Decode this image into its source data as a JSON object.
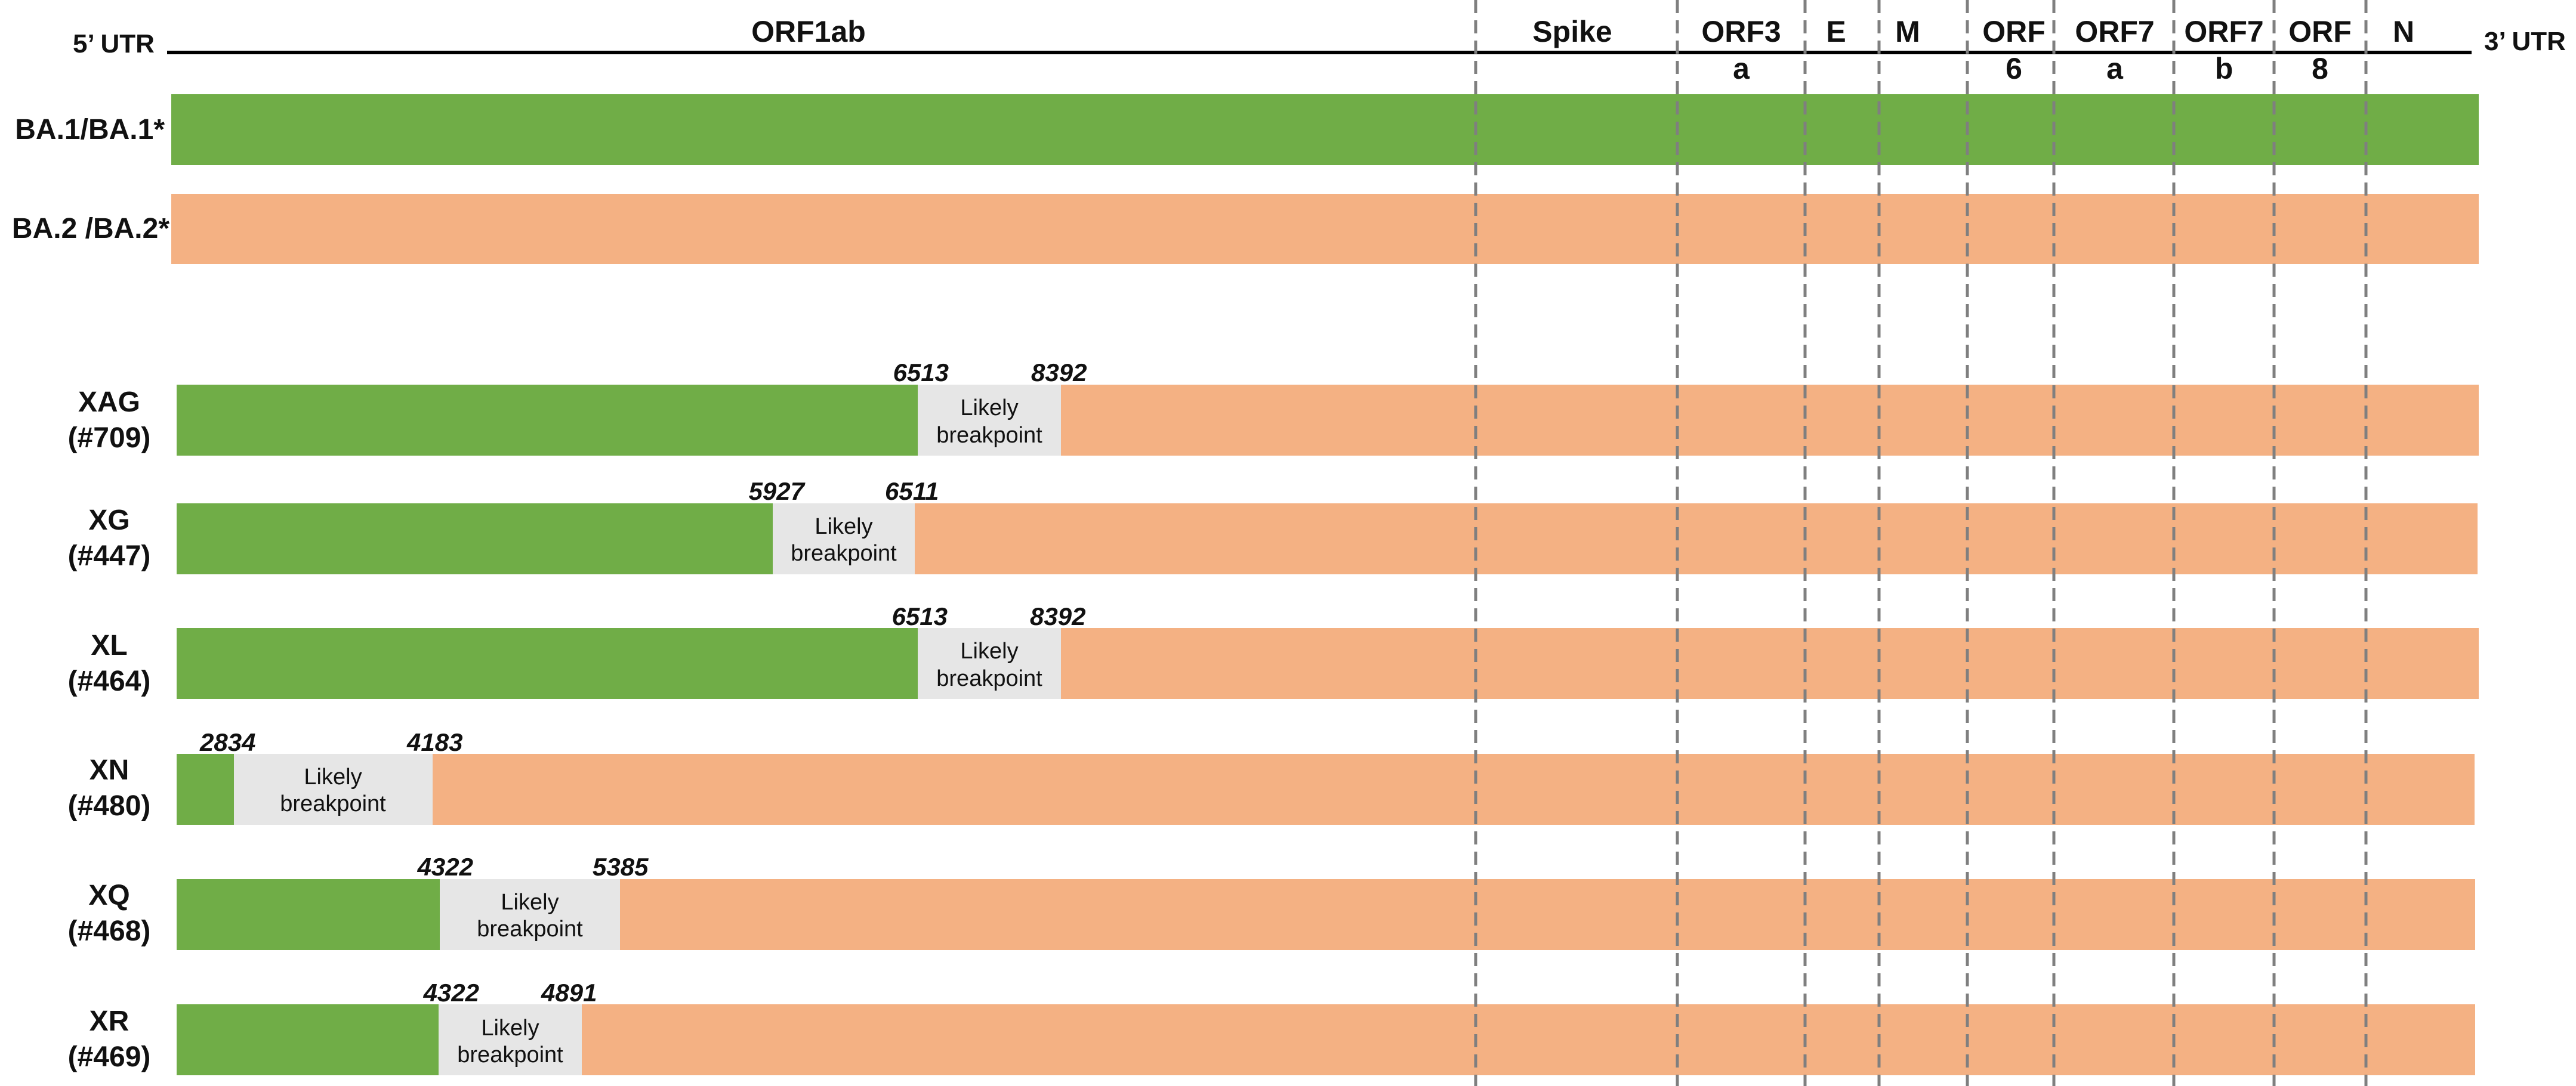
{
  "title": "",
  "utr": {
    "left": "5’ UTR",
    "right": "3’ UTR"
  },
  "colors": {
    "BA.1": "#70ad47",
    "BA.2": "#f4b183",
    "breakpoint": "#e6e6e6",
    "divider": "#7f7f7f"
  },
  "genome_regions": [
    {
      "label": "ORF1ab"
    },
    {
      "label": "Spike"
    },
    {
      "label": "ORF3",
      "label2": "a"
    },
    {
      "label": "E"
    },
    {
      "label": "M"
    },
    {
      "label": "ORF",
      "label2": "6"
    },
    {
      "label": "ORF7",
      "label2": "a"
    },
    {
      "label": "ORF7",
      "label2": "b"
    },
    {
      "label": "ORF",
      "label2": "8"
    },
    {
      "label": "N"
    }
  ],
  "parents": [
    {
      "label": "BA.1/BA.1*",
      "lineage": "BA.1"
    },
    {
      "label": "BA.2 /BA.2*",
      "lineage": "BA.2"
    }
  ],
  "breakpoint_label": [
    "Likely",
    "breakpoint"
  ],
  "recombinants": [
    {
      "name": "XAG",
      "id": "(#709)",
      "start": "6513",
      "end": "8392"
    },
    {
      "name": "XG",
      "id": "(#447)",
      "start": "5927",
      "end": "6511"
    },
    {
      "name": "XL",
      "id": "(#464)",
      "start": "6513",
      "end": "8392"
    },
    {
      "name": "XN",
      "id": "(#480)",
      "start": "2834",
      "end": "4183"
    },
    {
      "name": "XQ",
      "id": "(#468)",
      "start": "4322",
      "end": "5385"
    },
    {
      "name": "XR",
      "id": "(#469)",
      "start": "4322",
      "end": "4891"
    }
  ]
}
